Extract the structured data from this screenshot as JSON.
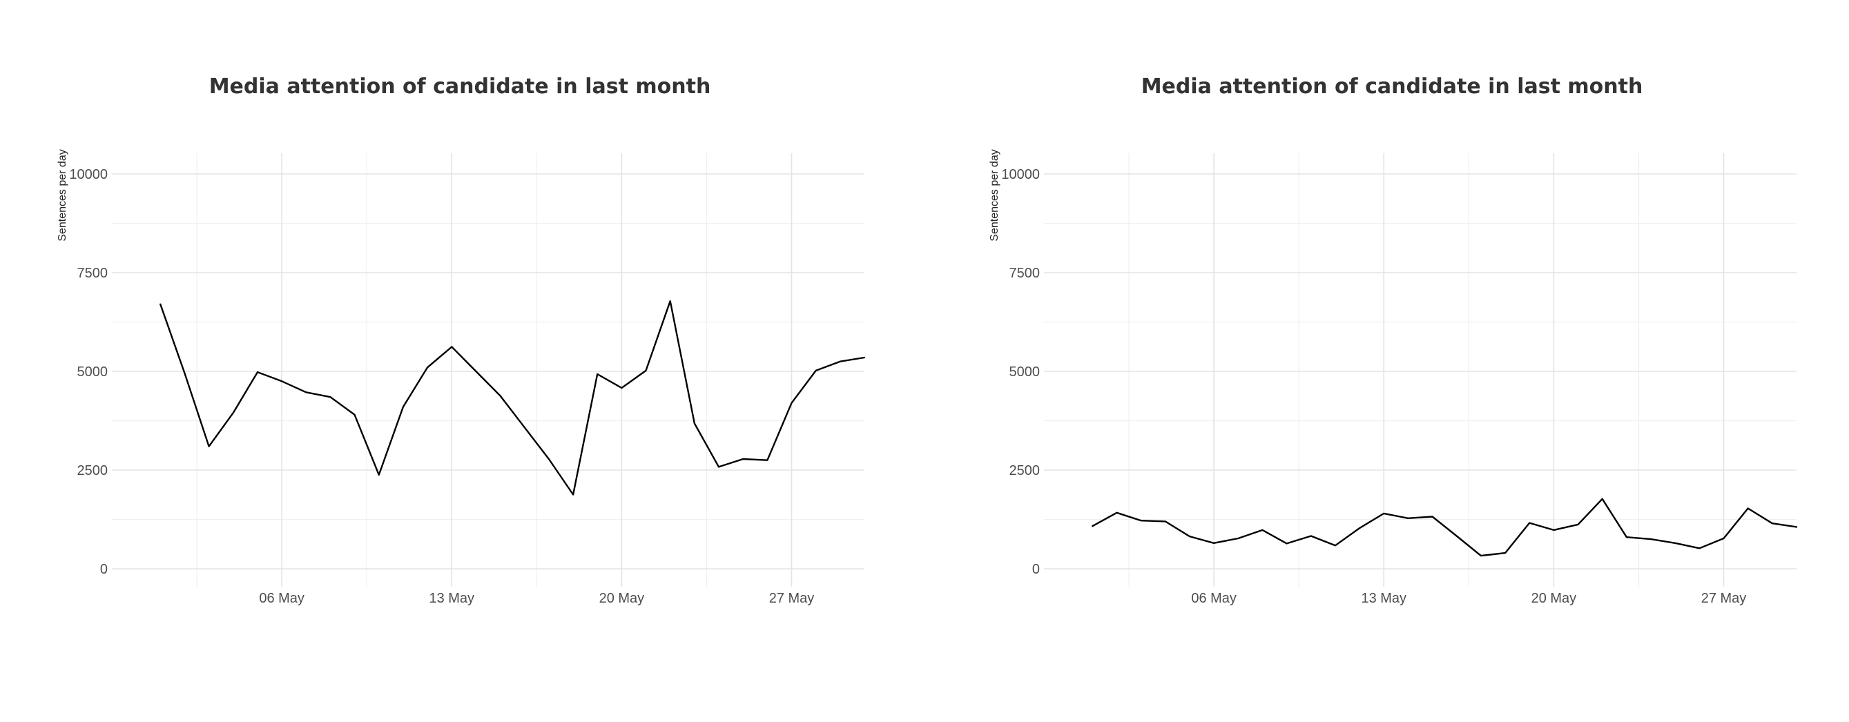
{
  "colors": {
    "line": "#000000",
    "grid_major": "#e3e3e3",
    "grid_minor": "#f0f0f0",
    "title": "#333333",
    "tick": "#4d4d4d"
  },
  "chart_data": [
    {
      "type": "line",
      "title": "Media attention of candidate in last month",
      "xlabel": "",
      "ylabel": "Sentences per day",
      "x_ticks": [
        "06 May",
        "13 May",
        "20 May",
        "27 May"
      ],
      "y_ticks": [
        0,
        2500,
        5000,
        7500,
        10000
      ],
      "ylim": [
        0,
        10000
      ],
      "xlim": [
        "2024-04-29",
        "2024-05-30"
      ],
      "grid": true,
      "legend": "none",
      "x": [
        "2024-05-01",
        "2024-05-02",
        "2024-05-03",
        "2024-05-04",
        "2024-05-05",
        "2024-05-06",
        "2024-05-07",
        "2024-05-08",
        "2024-05-09",
        "2024-05-10",
        "2024-05-11",
        "2024-05-12",
        "2024-05-13",
        "2024-05-14",
        "2024-05-15",
        "2024-05-16",
        "2024-05-17",
        "2024-05-18",
        "2024-05-19",
        "2024-05-20",
        "2024-05-21",
        "2024-05-22",
        "2024-05-23",
        "2024-05-24",
        "2024-05-25",
        "2024-05-26",
        "2024-05-27",
        "2024-05-28",
        "2024-05-29",
        "2024-05-30",
        "2024-05-31"
      ],
      "series": [
        {
          "values": [
            6700,
            4950,
            3100,
            3950,
            4980,
            4750,
            4470,
            4350,
            3900,
            2380,
            4100,
            5100,
            5620,
            5000,
            4380,
            3580,
            2780,
            1880,
            4930,
            4580,
            5020,
            6780,
            3680,
            2580,
            2780,
            2750,
            4200,
            5020,
            5250,
            5350,
            null
          ]
        }
      ]
    },
    {
      "type": "line",
      "title": "Media attention of candidate in last month",
      "xlabel": "",
      "ylabel": "Sentences per day",
      "x_ticks": [
        "06 May",
        "13 May",
        "20 May",
        "27 May"
      ],
      "y_ticks": [
        0,
        2500,
        5000,
        7500,
        10000
      ],
      "ylim": [
        0,
        10000
      ],
      "xlim": [
        "2024-04-29",
        "2024-05-30"
      ],
      "grid": true,
      "legend": "none",
      "x": [
        "2024-05-01",
        "2024-05-02",
        "2024-05-03",
        "2024-05-04",
        "2024-05-05",
        "2024-05-06",
        "2024-05-07",
        "2024-05-08",
        "2024-05-09",
        "2024-05-10",
        "2024-05-11",
        "2024-05-12",
        "2024-05-13",
        "2024-05-14",
        "2024-05-15",
        "2024-05-16",
        "2024-05-17",
        "2024-05-18",
        "2024-05-19",
        "2024-05-20",
        "2024-05-21",
        "2024-05-22",
        "2024-05-23",
        "2024-05-24",
        "2024-05-25",
        "2024-05-26",
        "2024-05-27",
        "2024-05-28",
        "2024-05-29",
        "2024-05-30",
        "2024-05-31"
      ],
      "series": [
        {
          "values": [
            1080,
            1420,
            1220,
            1200,
            820,
            650,
            770,
            980,
            640,
            830,
            590,
            1030,
            1400,
            1280,
            1320,
            830,
            330,
            400,
            1160,
            980,
            1120,
            1770,
            800,
            750,
            650,
            520,
            770,
            1530,
            1150,
            1060,
            null
          ]
        }
      ]
    }
  ]
}
